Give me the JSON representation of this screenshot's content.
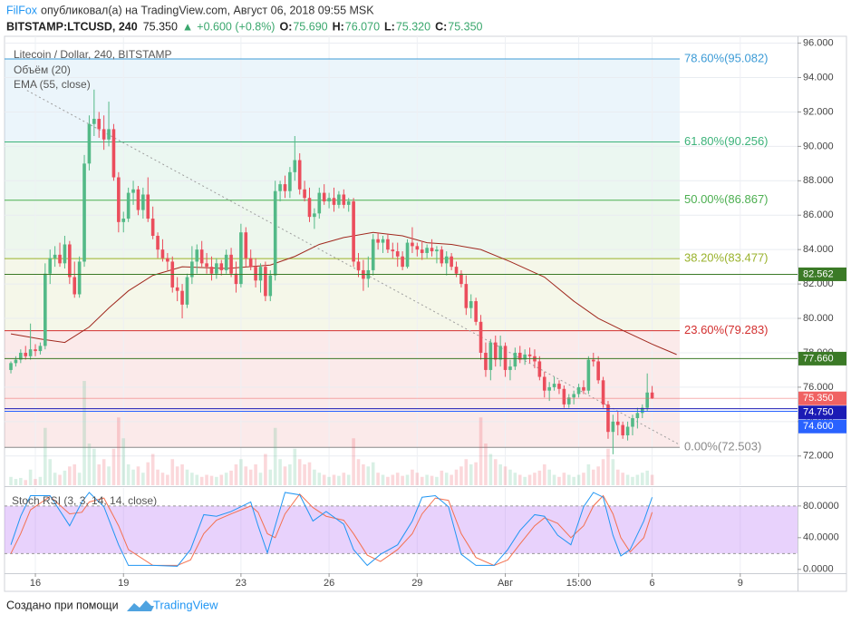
{
  "header": {
    "author": "FilFox",
    "published": "опубликовал(а) на TradingView.com, Август 06, 2018 09:55 MSK",
    "symbol": "BITSTAMP:LTCUSD, 240",
    "last": "75.350",
    "arrow": "▲",
    "change": "+0.600 (+0.8%)",
    "ohlc": [
      {
        "key": "O:",
        "value": "75.690"
      },
      {
        "key": "H:",
        "value": "76.070"
      },
      {
        "key": "L:",
        "value": "75.320"
      },
      {
        "key": "C:",
        "value": "75.350"
      }
    ]
  },
  "footer": {
    "text": "Создано при помощи",
    "brand": "TradingView"
  },
  "chart_data": {
    "type": "candlestick",
    "title": "Litecoin / Dollar, 240, BITSTAMP",
    "volume_title": "Объём (20)",
    "ema_title": "EMA (55, close)",
    "up_color": "#53b987",
    "down_color": "#eb4d5c",
    "open": [
      77.0,
      77.4,
      77.6,
      78.0,
      77.8,
      78.2,
      78.1,
      78.4,
      82.6,
      83.5,
      83.7,
      83.2,
      84.3,
      82.4,
      81.4,
      83.3,
      89.0,
      91.3,
      91.6,
      91.0,
      90.4,
      91.0,
      88.2,
      85.6,
      85.8,
      87.3,
      87.5,
      86.3,
      87.2,
      85.8,
      84.8,
      84.0,
      83.5,
      83.3,
      81.8,
      81.6,
      80.8,
      82.4,
      83.3,
      84.0,
      83.2,
      83.0,
      82.6,
      83.2,
      82.8,
      83.7,
      82.6,
      82.0,
      85.0,
      83.5,
      83.0,
      82.2,
      83.0,
      81.3,
      82.5,
      87.4,
      87.8,
      87.4,
      88.5,
      89.2,
      87.5,
      87.0,
      85.9,
      86.1,
      87.3,
      86.8,
      87.0,
      86.6,
      87.2,
      86.6,
      86.8,
      83.3,
      82.8,
      82.3,
      82.8,
      84.6,
      84.4,
      84.6,
      84.0,
      83.9,
      83.6,
      83.0,
      84.4,
      84.2,
      84.0,
      83.8,
      84.1,
      83.9,
      84.0,
      83.2,
      83.6,
      83.0,
      82.6,
      82.0,
      80.6,
      81.0,
      79.8,
      78.0,
      77.0,
      78.6,
      77.6,
      78.4,
      77.0,
      77.2,
      78.0,
      77.6,
      77.9,
      77.8,
      77.5,
      76.6,
      75.8,
      76.0,
      76.2,
      75.9,
      75.0,
      75.4,
      75.6,
      76.0,
      75.8,
      77.6,
      77.5,
      76.4,
      75.0,
      73.4,
      74.0,
      73.8,
      73.2,
      73.7,
      74.2,
      74.5,
      74.8,
      75.69
    ],
    "high": [
      77.5,
      77.8,
      78.2,
      78.4,
      79.7,
      78.5,
      78.6,
      83.2,
      84.0,
      84.2,
      84.4,
      84.8,
      84.5,
      83.3,
      83.6,
      89.5,
      91.8,
      93.3,
      92.0,
      91.8,
      92.6,
      91.3,
      88.5,
      86.2,
      87.6,
      88.0,
      87.7,
      87.6,
      88.2,
      86.5,
      85.0,
      84.6,
      83.8,
      83.6,
      82.4,
      82.0,
      82.6,
      84.2,
      84.3,
      84.5,
      83.8,
      83.6,
      83.5,
      83.4,
      84.0,
      84.1,
      83.3,
      85.5,
      85.3,
      84.0,
      83.5,
      83.2,
      83.3,
      82.8,
      88.0,
      88.0,
      88.3,
      88.8,
      90.6,
      89.6,
      88.0,
      87.6,
      86.4,
      87.6,
      87.8,
      87.3,
      87.6,
      87.4,
      87.5,
      87.0,
      87.0,
      83.8,
      83.4,
      83.6,
      84.9,
      85.0,
      84.8,
      84.9,
      84.4,
      84.4,
      83.9,
      84.6,
      85.3,
      84.4,
      84.5,
      84.3,
      84.6,
      84.2,
      84.2,
      83.9,
      83.8,
      83.3,
      82.8,
      82.5,
      81.4,
      81.2,
      80.2,
      78.6,
      78.8,
      79.0,
      79.0,
      78.6,
      77.6,
      78.3,
      78.4,
      78.2,
      78.3,
      78.2,
      77.8,
      76.9,
      76.3,
      76.6,
      76.4,
      76.1,
      75.6,
      75.8,
      76.2,
      76.4,
      77.8,
      78.0,
      77.8,
      76.6,
      75.2,
      74.4,
      74.6,
      74.0,
      74.0,
      74.4,
      74.8,
      75.0,
      76.8,
      76.07
    ],
    "low": [
      76.8,
      77.2,
      77.4,
      77.6,
      77.6,
      77.8,
      77.9,
      78.2,
      82.0,
      83.0,
      83.0,
      82.9,
      82.0,
      81.2,
      81.2,
      83.0,
      88.6,
      90.6,
      90.5,
      89.8,
      90.0,
      88.0,
      85.0,
      85.0,
      85.6,
      86.6,
      86.0,
      85.8,
      85.6,
      84.6,
      83.5,
      83.3,
      82.8,
      81.5,
      81.0,
      80.0,
      80.6,
      82.0,
      82.6,
      83.0,
      82.6,
      82.2,
      82.3,
      82.5,
      82.6,
      82.4,
      81.5,
      81.8,
      83.0,
      82.8,
      81.8,
      81.5,
      81.0,
      81.0,
      82.2,
      86.8,
      87.0,
      87.0,
      88.0,
      87.2,
      86.8,
      85.6,
      85.2,
      85.8,
      86.6,
      86.4,
      86.2,
      86.4,
      86.4,
      86.2,
      83.0,
      82.4,
      81.6,
      81.8,
      82.5,
      84.0,
      83.8,
      83.8,
      83.5,
      83.0,
      82.8,
      82.9,
      83.8,
      83.6,
      83.4,
      83.5,
      83.6,
      83.2,
      83.0,
      82.5,
      82.8,
      82.4,
      81.8,
      80.2,
      80.0,
      79.6,
      77.6,
      76.6,
      76.4,
      77.2,
      77.2,
      76.6,
      76.4,
      77.0,
      77.4,
      77.3,
      77.4,
      77.1,
      76.4,
      75.4,
      75.2,
      75.8,
      75.6,
      74.8,
      74.8,
      75.0,
      75.4,
      75.6,
      75.6,
      77.2,
      76.2,
      74.8,
      73.0,
      72.1,
      73.2,
      73.0,
      72.9,
      73.2,
      73.6,
      74.2,
      74.6,
      75.32
    ],
    "close": [
      77.4,
      77.6,
      78.0,
      77.8,
      78.2,
      78.1,
      78.4,
      82.6,
      83.5,
      83.7,
      83.2,
      84.3,
      82.4,
      81.4,
      83.3,
      89.0,
      91.3,
      91.6,
      91.0,
      90.4,
      91.0,
      88.2,
      85.6,
      85.8,
      87.3,
      87.5,
      86.3,
      87.2,
      85.8,
      84.8,
      84.0,
      83.5,
      83.3,
      81.8,
      81.6,
      80.8,
      82.4,
      83.3,
      84.0,
      83.2,
      83.0,
      82.6,
      83.2,
      82.8,
      83.7,
      82.6,
      82.0,
      85.0,
      83.5,
      83.0,
      82.2,
      83.0,
      81.3,
      82.5,
      87.4,
      87.8,
      87.4,
      88.5,
      89.2,
      87.5,
      87.0,
      85.9,
      86.1,
      87.3,
      86.8,
      87.0,
      86.6,
      87.2,
      86.6,
      86.8,
      83.3,
      82.8,
      82.3,
      82.8,
      84.6,
      84.4,
      84.6,
      84.0,
      83.9,
      83.6,
      83.0,
      84.4,
      84.2,
      84.0,
      83.8,
      84.1,
      83.9,
      84.0,
      83.2,
      83.6,
      83.0,
      82.6,
      82.0,
      80.6,
      81.0,
      79.8,
      78.0,
      77.0,
      78.6,
      77.6,
      78.4,
      77.0,
      77.2,
      78.0,
      77.6,
      77.9,
      77.8,
      77.5,
      76.6,
      75.8,
      76.0,
      76.2,
      75.9,
      75.0,
      75.4,
      75.6,
      76.0,
      75.8,
      77.6,
      77.5,
      76.4,
      75.0,
      73.4,
      74.0,
      73.8,
      73.2,
      73.7,
      74.2,
      74.5,
      74.8,
      75.69,
      75.35
    ],
    "volume": [
      8,
      6,
      7,
      5,
      15,
      6,
      8,
      55,
      25,
      12,
      10,
      14,
      18,
      20,
      12,
      100,
      40,
      35,
      20,
      25,
      18,
      35,
      65,
      45,
      20,
      15,
      18,
      12,
      22,
      30,
      15,
      12,
      10,
      25,
      18,
      20,
      15,
      12,
      10,
      8,
      10,
      9,
      8,
      10,
      12,
      14,
      20,
      25,
      18,
      15,
      20,
      12,
      30,
      15,
      55,
      25,
      18,
      20,
      35,
      25,
      20,
      22,
      15,
      12,
      10,
      8,
      10,
      9,
      12,
      10,
      45,
      25,
      20,
      18,
      22,
      12,
      10,
      8,
      10,
      12,
      9,
      10,
      15,
      12,
      8,
      10,
      9,
      8,
      14,
      12,
      10,
      15,
      18,
      25,
      20,
      22,
      65,
      40,
      30,
      25,
      20,
      18,
      15,
      12,
      10,
      8,
      10,
      12,
      14,
      20,
      15,
      10,
      8,
      12,
      10,
      8,
      10,
      12,
      20,
      15,
      18,
      25,
      35,
      25,
      15,
      12,
      10,
      8,
      10,
      12,
      14,
      10
    ],
    "ema": {
      "color": "#a0281e",
      "x": [
        0,
        6,
        11,
        16,
        20,
        24,
        29,
        35,
        44,
        53,
        58,
        63,
        68,
        74,
        80,
        85,
        90,
        96,
        102,
        109,
        115,
        120,
        125,
        131,
        136
      ],
      "values": [
        79.1,
        78.8,
        78.6,
        79.5,
        80.6,
        81.6,
        82.5,
        83.0,
        82.9,
        83.1,
        83.6,
        84.3,
        84.7,
        85.0,
        84.8,
        84.4,
        84.3,
        84.0,
        83.3,
        82.4,
        81.0,
        80.0,
        79.3,
        78.5,
        77.9
      ]
    },
    "fib": [
      {
        "value": 95.082,
        "label": "78.60%(95.082)",
        "color": "#3c9bd6"
      },
      {
        "value": 90.256,
        "label": "61.80%(90.256)",
        "color": "#3db37a"
      },
      {
        "value": 86.867,
        "label": "50.00%(86.867)",
        "color": "#4caf50"
      },
      {
        "value": 83.477,
        "label": "38.20%(83.477)",
        "color": "#9ab22c"
      },
      {
        "value": 79.283,
        "label": "23.60%(79.283)",
        "color": "#d32f2f"
      },
      {
        "value": 72.503,
        "label": "0.00%(72.503)",
        "color": "#8a8a8a"
      }
    ],
    "trendline": {
      "start": [
        3.3,
        93.25
      ],
      "end": [
        136.7,
        72.64
      ],
      "color": "#9e9e9e"
    },
    "price_lines": [
      {
        "value": 82.562,
        "label": "82.562",
        "color": "#3b7a27"
      },
      {
        "value": 77.66,
        "label": "77.660",
        "color": "#3b7a27"
      },
      {
        "value": 75.35,
        "label": "75.350",
        "color": "#f06262"
      },
      {
        "value": 74.75,
        "label": "74.750",
        "color": "#1b1bb5"
      },
      {
        "value": 74.6,
        "label": "74.600",
        "color": "#2962ff"
      }
    ],
    "xlim": [
      -1.3,
      160.7
    ],
    "xticks": [
      {
        "value": 5,
        "label": "16"
      },
      {
        "value": 23,
        "label": "19"
      },
      {
        "value": 47,
        "label": "23"
      },
      {
        "value": 65,
        "label": "26"
      },
      {
        "value": 83,
        "label": "29"
      },
      {
        "value": 101,
        "label": "Авг"
      },
      {
        "value": 116,
        "label": "15:00"
      },
      {
        "value": 131,
        "label": "6"
      },
      {
        "value": 149,
        "label": "9"
      }
    ],
    "ylim": [
      70.3,
      96.4
    ],
    "yticks": [
      {
        "value": 72,
        "label": "72.000"
      },
      {
        "value": 74,
        "label": "74.000"
      },
      {
        "value": 76,
        "label": "76.000"
      },
      {
        "value": 78,
        "label": "78.000"
      },
      {
        "value": 80,
        "label": "80.000"
      },
      {
        "value": 82,
        "label": "82.000"
      },
      {
        "value": 84,
        "label": "84.000"
      },
      {
        "value": 86,
        "label": "86.000"
      },
      {
        "value": 88,
        "label": "88.000"
      },
      {
        "value": 90,
        "label": "90.000"
      },
      {
        "value": 92,
        "label": "92.000"
      },
      {
        "value": 94,
        "label": "94.000"
      },
      {
        "value": 96,
        "label": "96.000"
      }
    ],
    "grid": true,
    "stoch": {
      "title": "Stoch RSI (3, 3, 14, 14, close)",
      "k_color": "#2196f3",
      "d_color": "#f4704f",
      "band": [
        20,
        80
      ],
      "band_color": "#b36bf5",
      "ylim": [
        -4.8,
        102.7
      ],
      "yticks": [
        {
          "value": 0,
          "label": "0.0000"
        },
        {
          "value": 40,
          "label": "40.0000"
        },
        {
          "value": 80,
          "label": "80.0000"
        }
      ],
      "x": [
        0,
        2,
        4,
        8,
        12,
        14.5,
        16,
        19,
        22,
        24,
        29,
        34,
        36.7,
        39.4,
        42,
        45,
        49,
        50.5,
        52.4,
        54,
        56,
        59,
        61.7,
        64.4,
        68,
        70,
        72.8,
        75.5,
        79,
        82,
        84,
        86.7,
        89.4,
        92,
        95,
        98.7,
        101.5,
        104,
        107,
        109,
        111.7,
        114.4,
        117,
        119,
        121,
        123,
        124.6,
        126.5,
        129.3,
        131
      ],
      "k": [
        31,
        67,
        93,
        93,
        55,
        85,
        97,
        79,
        31,
        5,
        5,
        4,
        25,
        69,
        67,
        73,
        85,
        55,
        21,
        55,
        97,
        94,
        61,
        73,
        57,
        25,
        5,
        19,
        31,
        61,
        91,
        93,
        79,
        19,
        5,
        5,
        25,
        49,
        69,
        67,
        43,
        31,
        79,
        97,
        91,
        43,
        17,
        25,
        61,
        91
      ],
      "d": [
        20,
        45,
        75,
        92,
        70,
        72,
        85,
        90,
        55,
        25,
        5,
        5,
        12,
        45,
        62,
        70,
        80,
        72,
        45,
        40,
        70,
        95,
        78,
        67,
        62,
        45,
        18,
        10,
        25,
        45,
        70,
        90,
        87,
        45,
        15,
        5,
        12,
        32,
        55,
        65,
        58,
        40,
        55,
        80,
        93,
        70,
        40,
        22,
        40,
        72
      ]
    }
  }
}
